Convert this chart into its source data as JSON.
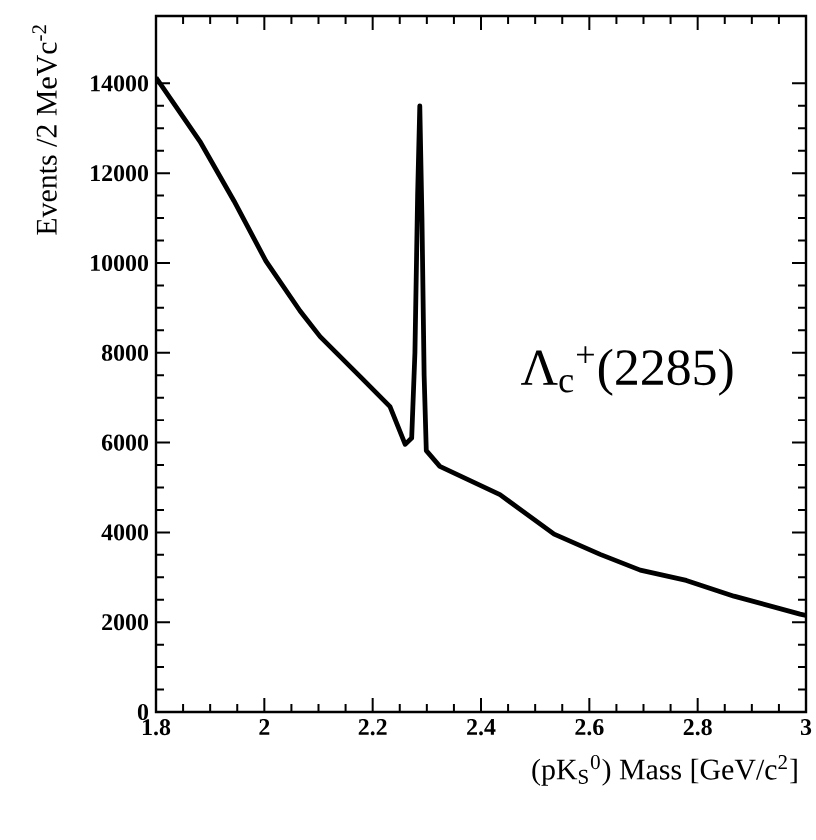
{
  "chart_data": {
    "type": "line",
    "xlabel": "(pK$_{S}$$^{0}$) Mass [GeV/c$^{2}$]",
    "ylabel": "Events /2 MeVc$^{-2}$",
    "annotations": [
      "Λ$_{c}$$^{+}$(2285)"
    ],
    "xlim": [
      1.8,
      3.0
    ],
    "ylim": [
      0,
      15500
    ],
    "xticks": [
      1.8,
      2,
      2.2,
      2.4,
      2.6,
      2.8,
      3
    ],
    "yticks": [
      0,
      2000,
      4000,
      6000,
      8000,
      10000,
      12000,
      14000
    ],
    "grid": false,
    "marker": "none",
    "line_style": "solid",
    "series": [
      {
        "color": "#000000",
        "x": [
          1.8,
          1.881,
          1.944,
          2.003,
          2.066,
          2.103,
          2.177,
          2.232,
          2.26,
          2.272,
          2.278,
          2.283,
          2.287,
          2.291,
          2.295,
          2.299,
          2.324,
          2.435,
          2.535,
          2.62,
          2.694,
          2.779,
          2.867,
          2.989,
          3.0
        ],
        "values": [
          14130,
          12710,
          11380,
          10040,
          8930,
          8360,
          7470,
          6800,
          5960,
          6100,
          8000,
          11500,
          13500,
          11000,
          7500,
          5820,
          5470,
          4840,
          3960,
          3510,
          3160,
          2930,
          2580,
          2180,
          2150
        ]
      }
    ]
  }
}
